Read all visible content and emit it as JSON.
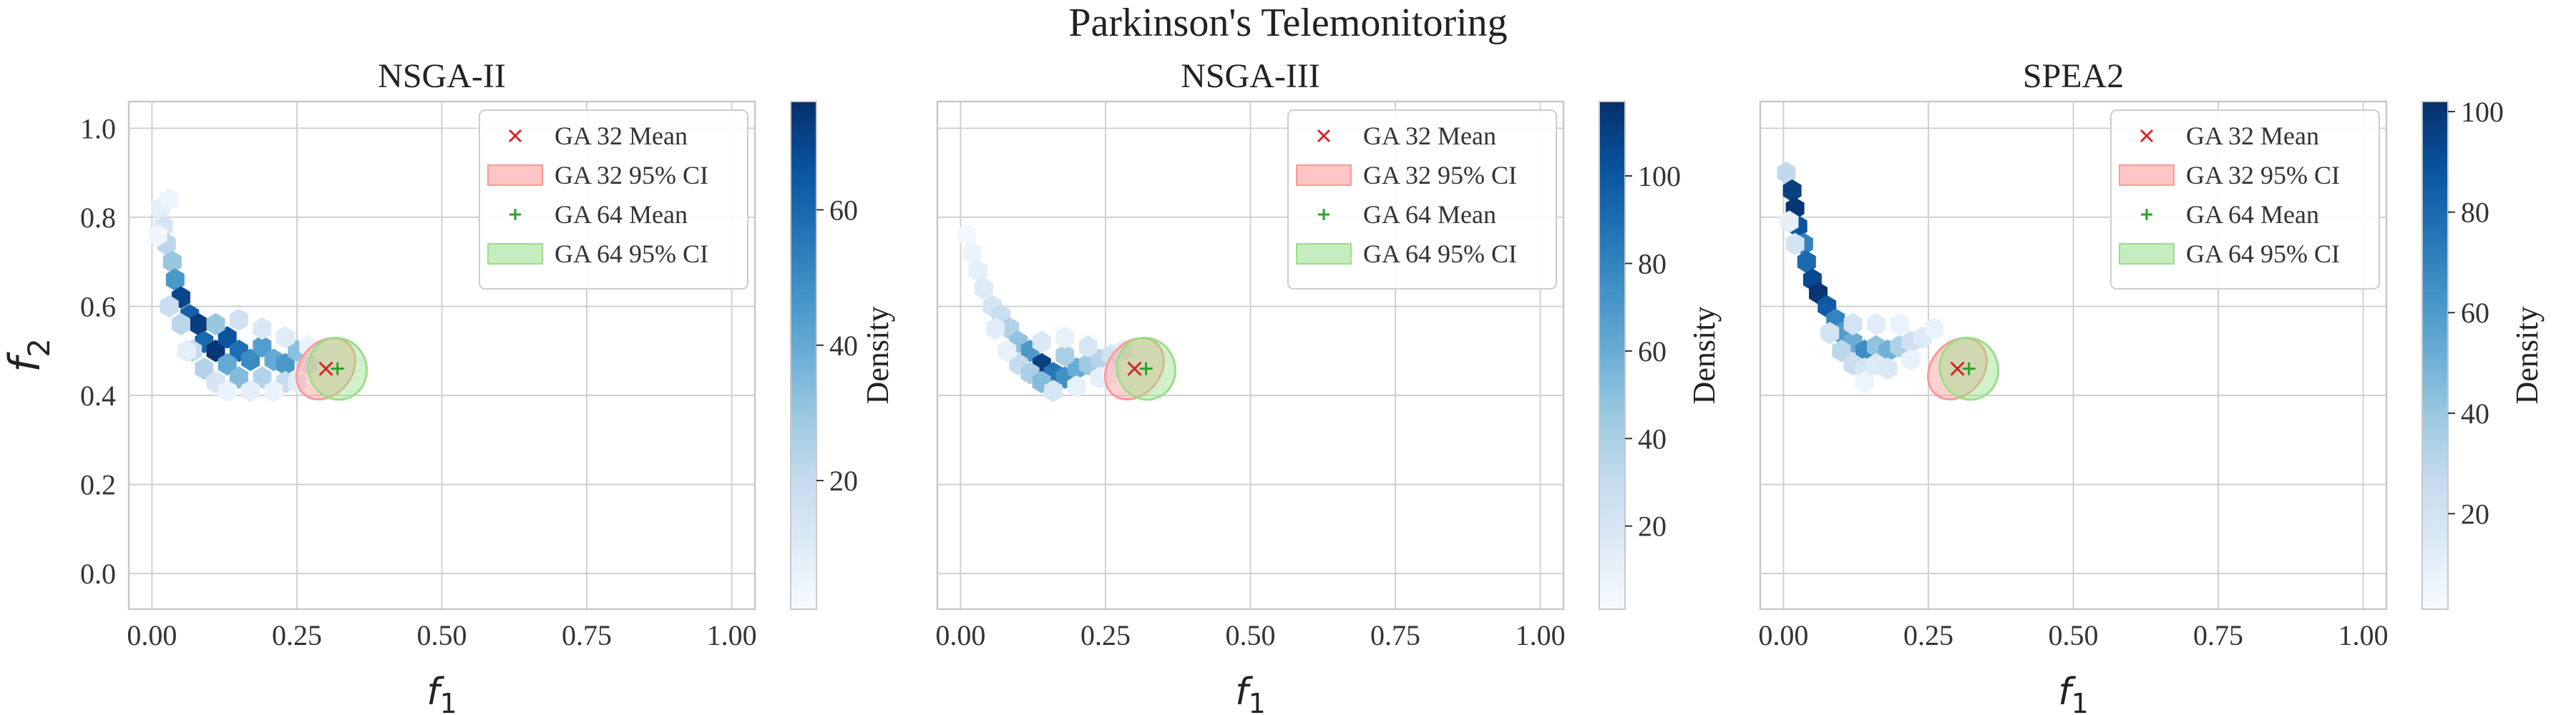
{
  "chart_data": {
    "type": "hexbin",
    "suptitle": "Parkinson's Telemonitoring",
    "legend_position": "upper right",
    "grid": true,
    "panels": [
      {
        "title": "NSGA-II",
        "xlabel": "f1",
        "ylabel": "f2",
        "xlim": [
          -0.04,
          1.04
        ],
        "ylim": [
          -0.08,
          1.06
        ],
        "xticks": [
          "0.00",
          "0.25",
          "0.50",
          "0.75",
          "1.00"
        ],
        "yticks": [
          "0.0",
          "0.2",
          "0.4",
          "0.6",
          "0.8",
          "1.0"
        ],
        "colorbar": {
          "label": "Density",
          "min": 1,
          "max": 76,
          "ticks": [
            20,
            40,
            60
          ]
        },
        "bins": [
          {
            "x": 0.015,
            "y": 0.82,
            "d": 8
          },
          {
            "x": 0.02,
            "y": 0.78,
            "d": 14
          },
          {
            "x": 0.025,
            "y": 0.74,
            "d": 22
          },
          {
            "x": 0.035,
            "y": 0.7,
            "d": 30
          },
          {
            "x": 0.04,
            "y": 0.66,
            "d": 46
          },
          {
            "x": 0.05,
            "y": 0.62,
            "d": 70
          },
          {
            "x": 0.065,
            "y": 0.58,
            "d": 62
          },
          {
            "x": 0.08,
            "y": 0.56,
            "d": 72
          },
          {
            "x": 0.09,
            "y": 0.52,
            "d": 60
          },
          {
            "x": 0.11,
            "y": 0.5,
            "d": 74
          },
          {
            "x": 0.13,
            "y": 0.53,
            "d": 66
          },
          {
            "x": 0.15,
            "y": 0.5,
            "d": 58
          },
          {
            "x": 0.17,
            "y": 0.48,
            "d": 50
          },
          {
            "x": 0.19,
            "y": 0.51,
            "d": 44
          },
          {
            "x": 0.21,
            "y": 0.48,
            "d": 40
          },
          {
            "x": 0.23,
            "y": 0.47,
            "d": 46
          },
          {
            "x": 0.25,
            "y": 0.5,
            "d": 32
          },
          {
            "x": 0.13,
            "y": 0.47,
            "d": 40
          },
          {
            "x": 0.09,
            "y": 0.46,
            "d": 24
          },
          {
            "x": 0.07,
            "y": 0.5,
            "d": 20
          },
          {
            "x": 0.05,
            "y": 0.56,
            "d": 22
          },
          {
            "x": 0.06,
            "y": 0.5,
            "d": 8
          },
          {
            "x": 0.11,
            "y": 0.43,
            "d": 14
          },
          {
            "x": 0.15,
            "y": 0.44,
            "d": 34
          },
          {
            "x": 0.19,
            "y": 0.44,
            "d": 24
          },
          {
            "x": 0.23,
            "y": 0.43,
            "d": 20
          },
          {
            "x": 0.17,
            "y": 0.41,
            "d": 8
          },
          {
            "x": 0.21,
            "y": 0.41,
            "d": 6
          },
          {
            "x": 0.27,
            "y": 0.47,
            "d": 14
          },
          {
            "x": 0.25,
            "y": 0.43,
            "d": 10
          },
          {
            "x": 0.13,
            "y": 0.41,
            "d": 6
          },
          {
            "x": 0.03,
            "y": 0.6,
            "d": 18
          },
          {
            "x": 0.01,
            "y": 0.76,
            "d": 4
          },
          {
            "x": 0.03,
            "y": 0.84,
            "d": 5
          },
          {
            "x": 0.15,
            "y": 0.57,
            "d": 16
          },
          {
            "x": 0.19,
            "y": 0.55,
            "d": 12
          },
          {
            "x": 0.23,
            "y": 0.53,
            "d": 10
          },
          {
            "x": 0.11,
            "y": 0.56,
            "d": 30
          },
          {
            "x": 0.27,
            "y": 0.51,
            "d": 6
          }
        ]
      },
      {
        "title": "NSGA-III",
        "xlabel": "f1",
        "ylabel": "",
        "xlim": [
          -0.04,
          1.04
        ],
        "ylim": [
          -0.08,
          1.06
        ],
        "xticks": [
          "0.00",
          "0.25",
          "0.50",
          "0.75",
          "1.00"
        ],
        "yticks": [],
        "colorbar": {
          "label": "Density",
          "min": 1,
          "max": 117,
          "ticks": [
            20,
            40,
            60,
            80,
            100
          ]
        },
        "bins": [
          {
            "x": 0.01,
            "y": 0.76,
            "d": 4
          },
          {
            "x": 0.02,
            "y": 0.72,
            "d": 8
          },
          {
            "x": 0.03,
            "y": 0.68,
            "d": 12
          },
          {
            "x": 0.04,
            "y": 0.64,
            "d": 16
          },
          {
            "x": 0.055,
            "y": 0.6,
            "d": 22
          },
          {
            "x": 0.07,
            "y": 0.58,
            "d": 28
          },
          {
            "x": 0.085,
            "y": 0.55,
            "d": 38
          },
          {
            "x": 0.1,
            "y": 0.52,
            "d": 48
          },
          {
            "x": 0.12,
            "y": 0.5,
            "d": 70
          },
          {
            "x": 0.14,
            "y": 0.47,
            "d": 110
          },
          {
            "x": 0.16,
            "y": 0.45,
            "d": 86
          },
          {
            "x": 0.18,
            "y": 0.44,
            "d": 74
          },
          {
            "x": 0.2,
            "y": 0.46,
            "d": 60
          },
          {
            "x": 0.22,
            "y": 0.47,
            "d": 44
          },
          {
            "x": 0.24,
            "y": 0.48,
            "d": 36
          },
          {
            "x": 0.26,
            "y": 0.49,
            "d": 24
          },
          {
            "x": 0.28,
            "y": 0.5,
            "d": 14
          },
          {
            "x": 0.1,
            "y": 0.47,
            "d": 30
          },
          {
            "x": 0.12,
            "y": 0.45,
            "d": 40
          },
          {
            "x": 0.14,
            "y": 0.43,
            "d": 52
          },
          {
            "x": 0.16,
            "y": 0.41,
            "d": 20
          },
          {
            "x": 0.06,
            "y": 0.55,
            "d": 14
          },
          {
            "x": 0.08,
            "y": 0.5,
            "d": 10
          },
          {
            "x": 0.18,
            "y": 0.49,
            "d": 40
          },
          {
            "x": 0.2,
            "y": 0.42,
            "d": 10
          },
          {
            "x": 0.22,
            "y": 0.51,
            "d": 20
          },
          {
            "x": 0.24,
            "y": 0.44,
            "d": 12
          },
          {
            "x": 0.14,
            "y": 0.52,
            "d": 18
          },
          {
            "x": 0.18,
            "y": 0.53,
            "d": 10
          },
          {
            "x": 0.26,
            "y": 0.45,
            "d": 8
          }
        ]
      },
      {
        "title": "SPEA2",
        "xlabel": "f1",
        "ylabel": "",
        "xlim": [
          -0.04,
          1.04
        ],
        "ylim": [
          -0.08,
          1.06
        ],
        "xticks": [
          "0.00",
          "0.25",
          "0.50",
          "0.75",
          "1.00"
        ],
        "yticks": [],
        "colorbar": {
          "label": "Density",
          "min": 1,
          "max": 102,
          "ticks": [
            20,
            40,
            60,
            80,
            100
          ]
        },
        "bins": [
          {
            "x": 0.005,
            "y": 0.9,
            "d": 28
          },
          {
            "x": 0.015,
            "y": 0.86,
            "d": 96
          },
          {
            "x": 0.02,
            "y": 0.82,
            "d": 100
          },
          {
            "x": 0.025,
            "y": 0.78,
            "d": 88
          },
          {
            "x": 0.035,
            "y": 0.74,
            "d": 70
          },
          {
            "x": 0.04,
            "y": 0.7,
            "d": 80
          },
          {
            "x": 0.05,
            "y": 0.66,
            "d": 92
          },
          {
            "x": 0.06,
            "y": 0.63,
            "d": 100
          },
          {
            "x": 0.075,
            "y": 0.6,
            "d": 86
          },
          {
            "x": 0.09,
            "y": 0.57,
            "d": 70
          },
          {
            "x": 0.1,
            "y": 0.54,
            "d": 60
          },
          {
            "x": 0.12,
            "y": 0.52,
            "d": 52
          },
          {
            "x": 0.14,
            "y": 0.5,
            "d": 66
          },
          {
            "x": 0.16,
            "y": 0.51,
            "d": 42
          },
          {
            "x": 0.18,
            "y": 0.5,
            "d": 50
          },
          {
            "x": 0.2,
            "y": 0.51,
            "d": 34
          },
          {
            "x": 0.22,
            "y": 0.52,
            "d": 22
          },
          {
            "x": 0.24,
            "y": 0.53,
            "d": 14
          },
          {
            "x": 0.26,
            "y": 0.55,
            "d": 8
          },
          {
            "x": 0.1,
            "y": 0.5,
            "d": 30
          },
          {
            "x": 0.12,
            "y": 0.47,
            "d": 24
          },
          {
            "x": 0.14,
            "y": 0.46,
            "d": 18
          },
          {
            "x": 0.16,
            "y": 0.47,
            "d": 14
          },
          {
            "x": 0.12,
            "y": 0.56,
            "d": 20
          },
          {
            "x": 0.16,
            "y": 0.56,
            "d": 12
          },
          {
            "x": 0.2,
            "y": 0.56,
            "d": 8
          },
          {
            "x": 0.08,
            "y": 0.54,
            "d": 20
          },
          {
            "x": 0.02,
            "y": 0.74,
            "d": 20
          },
          {
            "x": 0.01,
            "y": 0.79,
            "d": 10
          },
          {
            "x": 0.14,
            "y": 0.43,
            "d": 6
          },
          {
            "x": 0.18,
            "y": 0.46,
            "d": 16
          },
          {
            "x": 0.22,
            "y": 0.48,
            "d": 8
          }
        ]
      }
    ],
    "overlays": {
      "ga32": {
        "mean_label": "GA 32 Mean",
        "ci_label": "GA 32 95% CI",
        "mean_x": 0.3,
        "mean_y": 0.46,
        "ci_x_halfwidth": 0.058,
        "ci_y_halfwidth": 0.058,
        "ci_angle_deg": 50,
        "marker": "x",
        "color": "#d62728",
        "ci_color": "#ff9896"
      },
      "ga64": {
        "mean_label": "GA 64 Mean",
        "ci_label": "GA 64 95% CI",
        "mean_x": 0.32,
        "mean_y": 0.46,
        "ci_x_halfwidth": 0.05,
        "ci_y_halfwidth": 0.07,
        "ci_angle_deg": 20,
        "marker": "+",
        "color": "#2ca02c",
        "ci_color": "#98df8a"
      }
    }
  }
}
